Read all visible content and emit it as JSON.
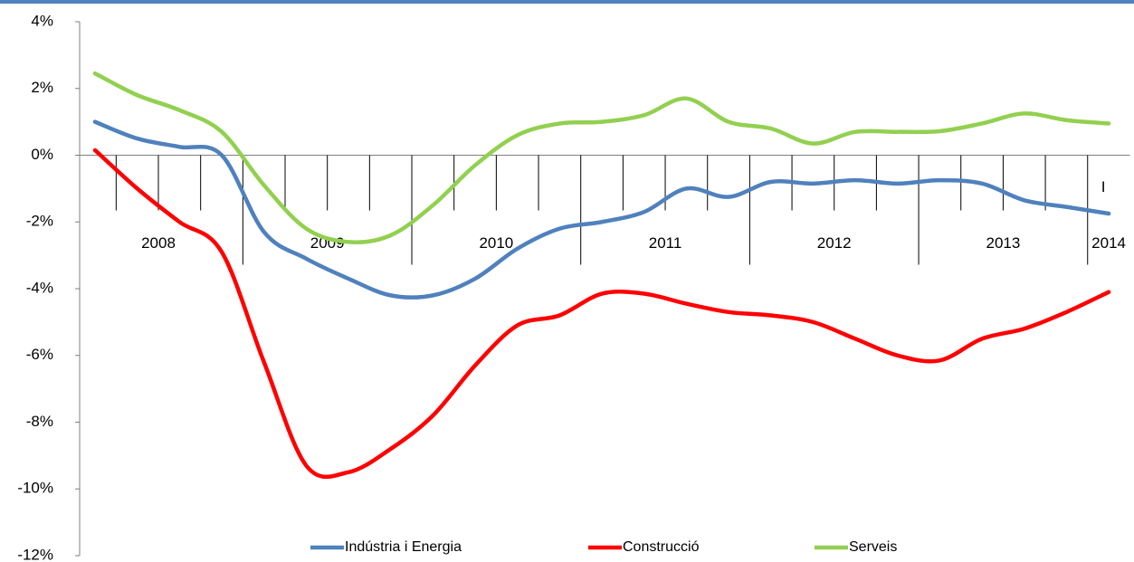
{
  "chart_data": {
    "type": "line",
    "categories": [
      null,
      null,
      null,
      null,
      null,
      null,
      null,
      null,
      null,
      null,
      null,
      null,
      null,
      null,
      null,
      null,
      null,
      null,
      null,
      null,
      null,
      null,
      null,
      null,
      "I"
    ],
    "groups": [
      {
        "label": "2008",
        "span": 4
      },
      {
        "label": "2009",
        "span": 4
      },
      {
        "label": "2010",
        "span": 4
      },
      {
        "label": "2011",
        "span": 4
      },
      {
        "label": "2012",
        "span": 4
      },
      {
        "label": "2013",
        "span": 4
      },
      {
        "label": "2014",
        "span": 1
      }
    ],
    "series": [
      {
        "name": "Indústria i Energia",
        "color": "#4f81bd",
        "values": [
          1.0,
          0.5,
          0.25,
          0.0,
          -2.3,
          -3.1,
          -3.7,
          -4.2,
          -4.2,
          -3.7,
          -2.8,
          -2.2,
          -2.0,
          -1.7,
          -1.0,
          -1.25,
          -0.8,
          -0.85,
          -0.75,
          -0.85,
          -0.75,
          -0.85,
          -1.35,
          -1.55,
          -1.75
        ]
      },
      {
        "name": "Construcció",
        "color": "#ff0000",
        "values": [
          0.15,
          -1.0,
          -2.0,
          -2.9,
          -6.2,
          -9.3,
          -9.5,
          -8.8,
          -7.8,
          -6.3,
          -5.1,
          -4.8,
          -4.15,
          -4.15,
          -4.45,
          -4.7,
          -4.8,
          -5.0,
          -5.5,
          -6.0,
          -6.15,
          -5.5,
          -5.2,
          -4.7,
          -4.1
        ]
      },
      {
        "name": "Serveis",
        "color": "#92d050",
        "values": [
          2.45,
          1.8,
          1.35,
          0.7,
          -0.9,
          -2.2,
          -2.6,
          -2.4,
          -1.5,
          -0.3,
          0.6,
          0.95,
          1.0,
          1.2,
          1.7,
          1.0,
          0.8,
          0.35,
          0.7,
          0.7,
          0.72,
          0.95,
          1.25,
          1.05,
          0.95
        ]
      }
    ],
    "ylim": [
      -12,
      4
    ],
    "yticks": [
      {
        "value": 4,
        "label": "4%"
      },
      {
        "value": 2,
        "label": "2%"
      },
      {
        "value": 0,
        "label": "0%"
      },
      {
        "value": -2,
        "label": "-2%"
      },
      {
        "value": -4,
        "label": "-4%"
      },
      {
        "value": -6,
        "label": "-6%"
      },
      {
        "value": -8,
        "label": "-8%"
      },
      {
        "value": -10,
        "label": "-10%"
      },
      {
        "value": -12,
        "label": "-12%"
      }
    ],
    "grid": false,
    "legend": "bottom"
  }
}
